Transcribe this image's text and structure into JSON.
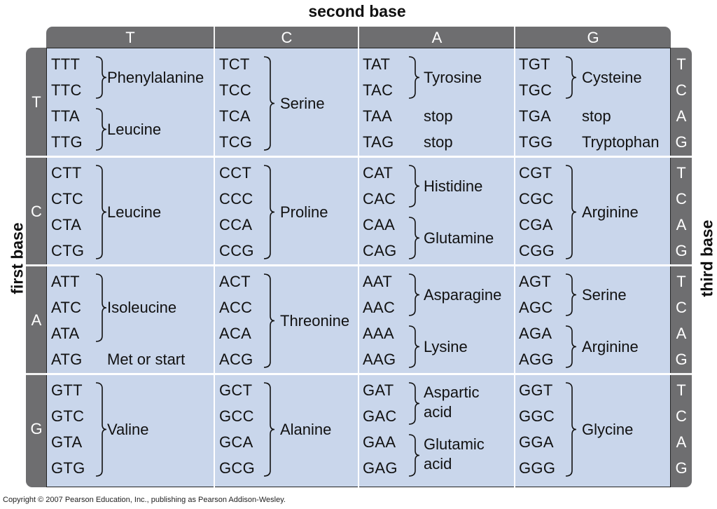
{
  "titles": {
    "top": "second base",
    "left": "first base",
    "right": "third base"
  },
  "second_base": [
    "T",
    "C",
    "A",
    "G"
  ],
  "first_base": [
    "T",
    "C",
    "A",
    "G"
  ],
  "third_base": [
    "T",
    "C",
    "A",
    "G"
  ],
  "codons": [
    [
      "TTT",
      "TTC",
      "TTA",
      "TTG",
      "TCT",
      "TCC",
      "TCA",
      "TCG",
      "TAT",
      "TAC",
      "TAA",
      "TAG",
      "TGT",
      "TGC",
      "TGA",
      "TGG"
    ],
    [
      "CTT",
      "CTC",
      "CTA",
      "CTG",
      "CCT",
      "CCC",
      "CCA",
      "CCG",
      "CAT",
      "CAC",
      "CAA",
      "CAG",
      "CGT",
      "CGC",
      "CGA",
      "CGG"
    ],
    [
      "ATT",
      "ATC",
      "ATA",
      "ATG",
      "ACT",
      "ACC",
      "ACA",
      "ACG",
      "AAT",
      "AAC",
      "AAA",
      "AAG",
      "AGT",
      "AGC",
      "AGA",
      "AGG"
    ],
    [
      "GTT",
      "GTC",
      "GTA",
      "GTG",
      "GCT",
      "GCC",
      "GCA",
      "GCG",
      "GAT",
      "GAC",
      "GAA",
      "GAG",
      "GGT",
      "GGC",
      "GGA",
      "GGG"
    ]
  ],
  "amino_acids": [
    [
      "Phenylalanine",
      "Leucine",
      "Serine",
      "Tyrosine",
      "stop",
      "stop",
      "Cysteine",
      "stop",
      "Tryptophan"
    ],
    [
      "Leucine",
      "Proline",
      "Histidine",
      "Glutamine",
      "Arginine"
    ],
    [
      "Isoleucine",
      "Met or start",
      "Threonine",
      "Asparagine",
      "Lysine",
      "Serine",
      "Arginine"
    ],
    [
      "Valine",
      "Alanine",
      "Aspartic acid",
      "Glutamic acid",
      "Glycine"
    ]
  ],
  "copyright": "Copyright © 2007 Pearson Education, Inc., publishing as Pearson Addison-Wesley."
}
